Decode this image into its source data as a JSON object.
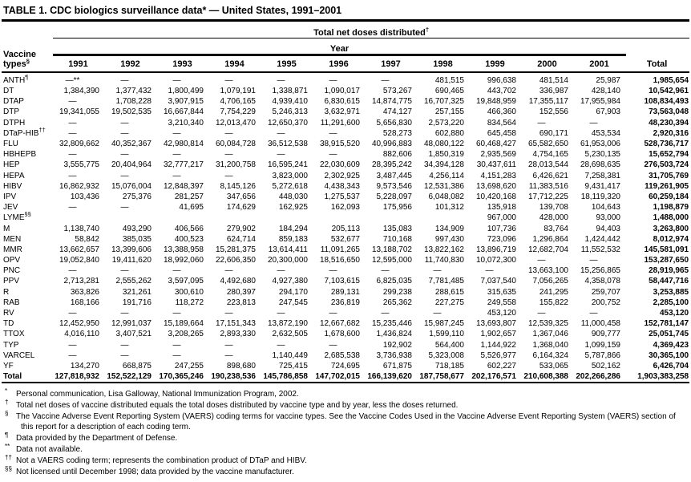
{
  "title": "TABLE 1. CDC biologics surveillance data* — United States, 1991–2001",
  "table": {
    "group_header": {
      "text": "Total net doses distributed",
      "sup": "†"
    },
    "year_header": "Year",
    "row_header": {
      "line1": "Vaccine",
      "line2": "types",
      "sup": "§"
    },
    "columns": [
      "1991",
      "1992",
      "1993",
      "1994",
      "1995",
      "1996",
      "1997",
      "1998",
      "1999",
      "2000",
      "2001",
      "Total"
    ],
    "rows": [
      {
        "label": "ANTH",
        "sup": "¶",
        "values": [
          "—**",
          "—",
          "—",
          "—",
          "—",
          "—",
          "—",
          "481,515",
          "996,638",
          "481,514",
          "25,987",
          "1,985,654"
        ]
      },
      {
        "label": "DT",
        "values": [
          "1,384,390",
          "1,377,432",
          "1,800,499",
          "1,079,191",
          "1,338,871",
          "1,090,017",
          "573,267",
          "690,465",
          "443,702",
          "336,987",
          "428,140",
          "10,542,961"
        ]
      },
      {
        "label": "DTAP",
        "values": [
          "—",
          "1,708,228",
          "3,907,915",
          "4,706,165",
          "4,939,410",
          "6,830,615",
          "14,874,775",
          "16,707,325",
          "19,848,959",
          "17,355,117",
          "17,955,984",
          "108,834,493"
        ]
      },
      {
        "label": "DTP",
        "values": [
          "19,341,055",
          "19,502,535",
          "16,667,844",
          "7,754,229",
          "5,246,313",
          "3,632,971",
          "474,127",
          "257,155",
          "466,360",
          "152,556",
          "67,903",
          "73,563,048"
        ]
      },
      {
        "label": "DTPH",
        "values": [
          "—",
          "—",
          "3,210,340",
          "12,013,470",
          "12,650,370",
          "11,291,600",
          "5,656,830",
          "2,573,220",
          "834,564",
          "—",
          "—",
          "48,230,394"
        ]
      },
      {
        "label": "DTaP-HIB",
        "sup": "††",
        "values": [
          "—",
          "—",
          "—",
          "—",
          "—",
          "—",
          "528,273",
          "602,880",
          "645,458",
          "690,171",
          "453,534",
          "2,920,316"
        ]
      },
      {
        "label": "FLU",
        "values": [
          "32,809,662",
          "40,352,367",
          "42,980,814",
          "60,084,728",
          "36,512,538",
          "38,915,520",
          "40,996,883",
          "48,080,122",
          "60,468,427",
          "65,582,650",
          "61,953,006",
          "528,736,717"
        ]
      },
      {
        "label": "HBHEPB",
        "values": [
          "—",
          "—",
          "—",
          "—",
          "—",
          "—",
          "882,606",
          "1,850,319",
          "2,935,569",
          "4,754,165",
          "5,230,135",
          "15,652,794"
        ]
      },
      {
        "label": "HEP",
        "values": [
          "3,555,775",
          "20,404,964",
          "32,777,217",
          "31,200,758",
          "16,595,241",
          "22,030,609",
          "28,395,242",
          "34,394,128",
          "30,437,611",
          "28,013,544",
          "28,698,635",
          "276,503,724"
        ]
      },
      {
        "label": "HEPA",
        "values": [
          "—",
          "—",
          "—",
          "—",
          "3,823,000",
          "2,302,925",
          "3,487,445",
          "4,256,114",
          "4,151,283",
          "6,426,621",
          "7,258,381",
          "31,705,769"
        ]
      },
      {
        "label": "HIBV",
        "values": [
          "16,862,932",
          "15,076,004",
          "12,848,397",
          "8,145,126",
          "5,272,618",
          "4,438,343",
          "9,573,546",
          "12,531,386",
          "13,698,620",
          "11,383,516",
          "9,431,417",
          "119,261,905"
        ]
      },
      {
        "label": "IPV",
        "values": [
          "103,436",
          "275,376",
          "281,257",
          "347,656",
          "448,030",
          "1,275,537",
          "5,228,097",
          "6,048,082",
          "10,420,168",
          "17,712,225",
          "18,119,320",
          "60,259,184"
        ]
      },
      {
        "label": "JEV",
        "values": [
          "—",
          "—",
          "41,695",
          "174,629",
          "162,925",
          "162,093",
          "175,956",
          "101,312",
          "135,918",
          "139,708",
          "104,643",
          "1,198,879"
        ]
      },
      {
        "label": "LYME",
        "sup": "§§",
        "values": [
          "",
          "",
          "",
          "",
          "",
          "",
          "",
          "",
          "967,000",
          "428,000",
          "93,000",
          "1,488,000"
        ]
      },
      {
        "label": "M",
        "values": [
          "1,138,740",
          "493,290",
          "406,566",
          "279,902",
          "184,294",
          "205,113",
          "135,083",
          "134,909",
          "107,736",
          "83,764",
          "94,403",
          "3,263,800"
        ]
      },
      {
        "label": "MEN",
        "values": [
          "58,842",
          "385,035",
          "400,523",
          "624,714",
          "859,183",
          "532,677",
          "710,168",
          "997,430",
          "723,096",
          "1,296,864",
          "1,424,442",
          "8,012,974"
        ]
      },
      {
        "label": "MMR",
        "values": [
          "13,662,657",
          "13,399,606",
          "13,388,958",
          "15,281,375",
          "13,614,411",
          "11,091,265",
          "13,188,702",
          "13,822,162",
          "13,896,719",
          "12,682,704",
          "11,552,532",
          "145,581,091"
        ]
      },
      {
        "label": "OPV",
        "values": [
          "19,052,840",
          "19,411,620",
          "18,992,060",
          "22,606,350",
          "20,300,000",
          "18,516,650",
          "12,595,000",
          "11,740,830",
          "10,072,300",
          "—",
          "—",
          "153,287,650"
        ]
      },
      {
        "label": "PNC",
        "values": [
          "—",
          "—",
          "—",
          "—",
          "—",
          "—",
          "—",
          "—",
          "—",
          "13,663,100",
          "15,256,865",
          "28,919,965"
        ]
      },
      {
        "label": "PPV",
        "values": [
          "2,713,281",
          "2,555,262",
          "3,597,095",
          "4,492,680",
          "4,927,380",
          "7,103,615",
          "6,825,035",
          "7,781,485",
          "7,037,540",
          "7,056,265",
          "4,358,078",
          "58,447,716"
        ]
      },
      {
        "label": "R",
        "values": [
          "363,826",
          "321,261",
          "300,610",
          "280,397",
          "294,170",
          "289,131",
          "299,238",
          "288,615",
          "315,635",
          "241,295",
          "259,707",
          "3,253,885"
        ]
      },
      {
        "label": "RAB",
        "values": [
          "168,166",
          "191,716",
          "118,272",
          "223,813",
          "247,545",
          "236,819",
          "265,362",
          "227,275",
          "249,558",
          "155,822",
          "200,752",
          "2,285,100"
        ]
      },
      {
        "label": "RV",
        "values": [
          "—",
          "—",
          "—",
          "—",
          "—",
          "—",
          "—",
          "—",
          "453,120",
          "—",
          "—",
          "453,120"
        ]
      },
      {
        "label": "TD",
        "values": [
          "12,452,950",
          "12,991,037",
          "15,189,664",
          "17,151,343",
          "13,872,190",
          "12,667,682",
          "15,235,446",
          "15,987,245",
          "13,693,807",
          "12,539,325",
          "11,000,458",
          "152,781,147"
        ]
      },
      {
        "label": "TTOX",
        "values": [
          "4,016,110",
          "3,407,521",
          "3,208,265",
          "2,893,330",
          "2,632,505",
          "1,678,600",
          "1,436,824",
          "1,599,110",
          "1,902,657",
          "1,367,046",
          "909,777",
          "25,051,745"
        ]
      },
      {
        "label": "TYP",
        "values": [
          "—",
          "—",
          "—",
          "—",
          "—",
          "—",
          "192,902",
          "564,400",
          "1,144,922",
          "1,368,040",
          "1,099,159",
          "4,369,423"
        ]
      },
      {
        "label": "VARCEL",
        "values": [
          "—",
          "—",
          "—",
          "—",
          "1,140,449",
          "2,685,538",
          "3,736,938",
          "5,323,008",
          "5,526,977",
          "6,164,324",
          "5,787,866",
          "30,365,100"
        ]
      },
      {
        "label": "YF",
        "values": [
          "134,270",
          "668,875",
          "247,255",
          "898,680",
          "725,415",
          "724,695",
          "671,875",
          "718,185",
          "602,227",
          "533,065",
          "502,162",
          "6,426,704"
        ]
      },
      {
        "label": "Total",
        "bold": true,
        "values": [
          "127,818,932",
          "152,522,129",
          "170,365,246",
          "190,238,536",
          "145,786,858",
          "147,702,015",
          "166,139,620",
          "187,758,677",
          "202,176,571",
          "210,608,388",
          "202,266,286",
          "1,903,383,258"
        ]
      }
    ]
  },
  "footnotes": [
    {
      "marker": "*",
      "text": "Personal communication, Lisa Galloway, National Immunization Program, 2002."
    },
    {
      "marker": "†",
      "text": "Total net doses of vaccine distributed equals the total doses distributed by vaccine type and by year, less the doses returned."
    },
    {
      "marker": "§",
      "text": "The Vaccine Adverse Event Reporting System (VAERS) coding terms for vaccine types. See the Vaccine Codes Used in the Vaccine Adverse Event Reporting System (VAERS) section of this report for a description of each coding term."
    },
    {
      "marker": "¶",
      "text": "Data provided by the Department of Defense."
    },
    {
      "marker": "**",
      "text": "Data not available."
    },
    {
      "marker": "††",
      "text": "Not a VAERS coding term; represents the combination product of DTaP and HIBV."
    },
    {
      "marker": "§§",
      "text": "Not licensed until December 1998; data provided by the vaccine manufacturer."
    }
  ]
}
